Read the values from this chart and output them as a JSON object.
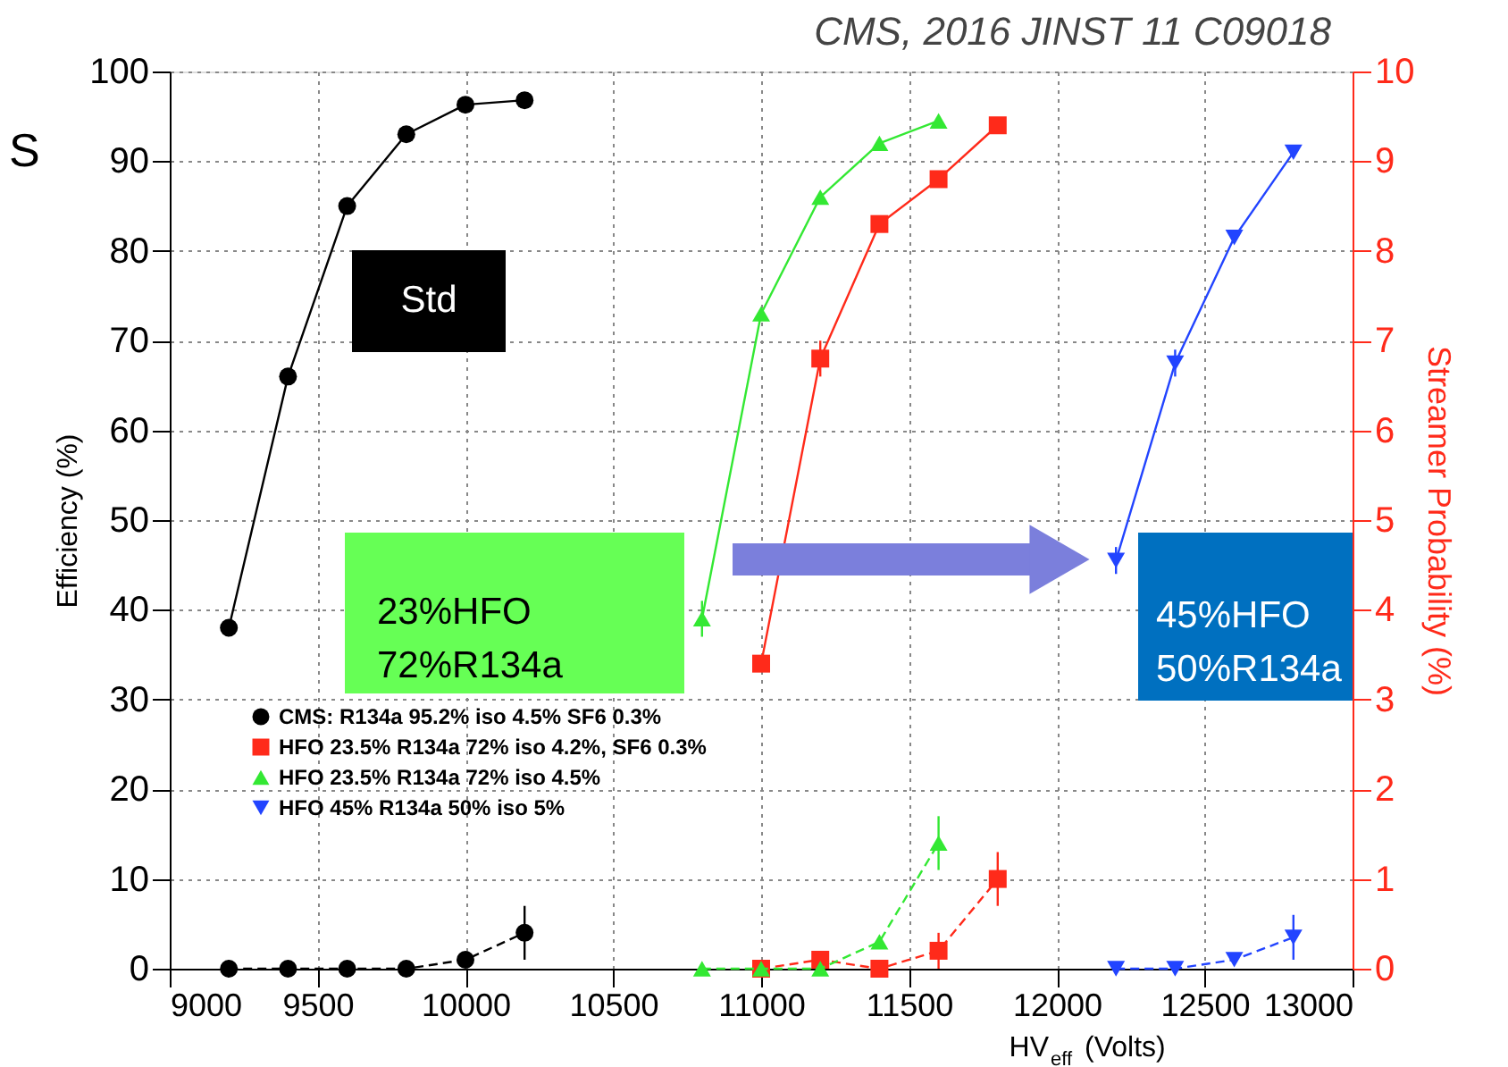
{
  "chart_data": {
    "type": "line",
    "xlabel": "HV$_{eff}$ (Volts)",
    "ylabel": "Efficiency (%)",
    "y2label": "Streamer Probability (%)",
    "xlim": [
      9000,
      13000
    ],
    "xticks": [
      9000,
      9500,
      10000,
      10500,
      11000,
      11500,
      12000,
      12500,
      13000
    ],
    "ylim": [
      0,
      100
    ],
    "yticks": [
      0,
      10,
      20,
      30,
      40,
      50,
      60,
      70,
      80,
      90,
      100
    ],
    "y2lim": [
      0,
      10
    ],
    "y2ticks": [
      0,
      1,
      2,
      3,
      4,
      5,
      6,
      7,
      8,
      9,
      10
    ],
    "grid": true,
    "legend": "bottom left",
    "series": [
      {
        "name": "CMS: R134a 95.2% iso 4.5% SF6 0.3%",
        "color": "#000000",
        "marker": "circle",
        "line_style": "solid",
        "x": [
          9200,
          9400,
          9600,
          9800,
          10000,
          10200
        ],
        "values": [
          38,
          66,
          85,
          93,
          96.3,
          96.8
        ]
      },
      {
        "name": "HFO 23.5% R134a 72% iso 4.2%, SF6 0.3%",
        "color": "#ff2a1a",
        "marker": "square",
        "line_style": "solid",
        "x": [
          11000,
          11200,
          11400,
          11600,
          11800
        ],
        "values": [
          34,
          68,
          83,
          88,
          94
        ],
        "errors": [
          null,
          2,
          null,
          null,
          null
        ]
      },
      {
        "name": "HFO 23.5% R134a 72% iso 4.5%",
        "color": "#33e833",
        "marker": "triangle",
        "line_style": "solid",
        "x": [
          10800,
          11000,
          11200,
          11400,
          11600
        ],
        "values": [
          39,
          73,
          86,
          92,
          94.5
        ],
        "errors": [
          2,
          null,
          null,
          null,
          null
        ]
      },
      {
        "name": "HFO 45% R134a 50% iso 5%",
        "color": "#2244ff",
        "marker": "triangle-down",
        "line_style": "solid",
        "x": [
          12200,
          12400,
          12600,
          12800
        ],
        "values": [
          45.5,
          67.5,
          81.5,
          91
        ],
        "errors": [
          1.5,
          1.5,
          null,
          null
        ]
      },
      {
        "color": "#000000",
        "marker": "circle",
        "line_style": "dashed",
        "axis": "y2",
        "x": [
          9200,
          9400,
          9600,
          9800,
          10000,
          10200
        ],
        "values": [
          0,
          0,
          0,
          0,
          0.1,
          0.4
        ],
        "errors": [
          null,
          null,
          null,
          null,
          null,
          0.3
        ]
      },
      {
        "color": "#ff2a1a",
        "marker": "square",
        "line_style": "dashed",
        "axis": "y2",
        "x": [
          11000,
          11200,
          11400,
          11600,
          11800
        ],
        "values": [
          0,
          0.1,
          0,
          0.2,
          1.0
        ],
        "errors": [
          null,
          null,
          null,
          0.2,
          0.3
        ]
      },
      {
        "color": "#33e833",
        "marker": "triangle",
        "line_style": "dashed",
        "axis": "y2",
        "x": [
          10800,
          11000,
          11200,
          11400,
          11600
        ],
        "values": [
          0,
          0,
          0,
          0.3,
          1.4
        ],
        "errors": [
          null,
          null,
          null,
          null,
          0.3
        ]
      },
      {
        "color": "#2244ff",
        "marker": "triangle-down",
        "line_style": "dashed",
        "axis": "y2",
        "x": [
          12200,
          12400,
          12600,
          12800
        ],
        "values": [
          0,
          0,
          0.1,
          0.35
        ],
        "errors": [
          null,
          null,
          null,
          0.25
        ]
      }
    ],
    "annotations": [
      "CMS, 2016 JINST 11 C09018",
      "S",
      "Std",
      "23%HFO\n72%R134a",
      "45%HFO\n50%R134a"
    ]
  }
}
